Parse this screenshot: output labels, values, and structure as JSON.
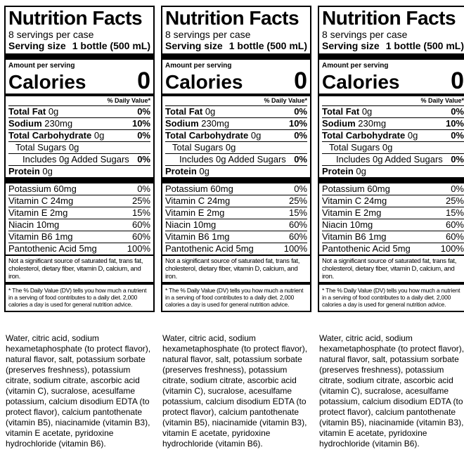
{
  "label": {
    "title": "Nutrition Facts",
    "servings": "8 servings per case",
    "serving_size_label": "Serving size",
    "serving_size_value": "1 bottle (500 mL)",
    "amount_per_serving": "Amount per serving",
    "calories_label": "Calories",
    "calories_value": "0",
    "dv_header": "% Daily Value*",
    "total_fat_label": "Total Fat",
    "total_fat_amount": "0g",
    "total_fat_dv": "0%",
    "sodium_label": "Sodium",
    "sodium_amount": "230mg",
    "sodium_dv": "10%",
    "carb_label": "Total Carbohydrate",
    "carb_amount": "0g",
    "carb_dv": "0%",
    "sugars": "Total Sugars 0g",
    "added_sugars": "Includes 0g Added Sugars",
    "added_sugars_dv": "0%",
    "protein_label": "Protein",
    "protein_amount": "0g",
    "vitamins": [
      {
        "name": "Potassium 60mg",
        "dv": "0%"
      },
      {
        "name": "Vitamin C 24mg",
        "dv": "25%"
      },
      {
        "name": "Vitamin E 2mg",
        "dv": "15%"
      },
      {
        "name": "Niacin 10mg",
        "dv": "60%"
      },
      {
        "name": "Vitamin B6 1mg",
        "dv": "60%"
      },
      {
        "name": "Pantothenic Acid 5mg",
        "dv": "100%"
      }
    ],
    "not_significant": "Not a significant source of saturated fat, trans fat, cholesterol, dietary fiber, vitamin D, calcium, and iron.",
    "footnote": "* The % Daily Value (DV) tells you how much a nutrient in a serving of food contributes to a daily diet. 2,000 calories a day is used for general nutrition advice."
  },
  "ingredients": "Water, citric acid, sodium hexametaphosphate (to protect flavor), natural flavor, salt, potassium sorbate (preserves freshness), potassium citrate, sodium citrate, ascorbic acid (vitamin C), sucralose, acesulfame potassium, calcium disodium EDTA (to protect flavor), calcium pantothenate (vitamin B5), niacinamide (vitamin B3), vitamin E acetate, pyridoxine hydrochloride (vitamin B6)."
}
